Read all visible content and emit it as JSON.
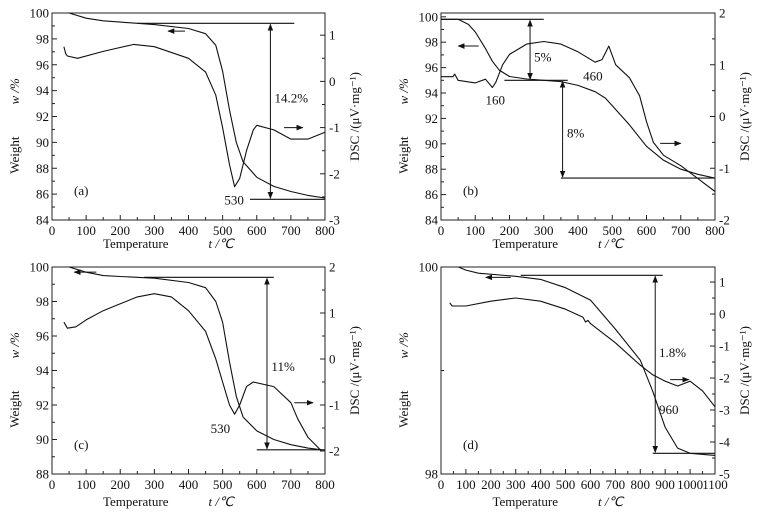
{
  "chart_data": [
    {
      "type": "line",
      "panel_label": "(a)",
      "xlabel": "Temperature",
      "xlabel_unit": "t /℃",
      "ylabel": "Weight",
      "ylabel_unit": "w /%",
      "y2label": "DSC /(μV·mg⁻¹)",
      "xlim": [
        0,
        800
      ],
      "ylim": [
        84,
        100
      ],
      "y2lim": [
        -3,
        1.48
      ],
      "xticks": [
        0,
        100,
        200,
        300,
        400,
        500,
        600,
        700,
        800
      ],
      "yticks": [
        84,
        86,
        88,
        90,
        92,
        94,
        96,
        98,
        100
      ],
      "y2ticks": [
        -3,
        -2,
        -1,
        0,
        1
      ],
      "grid": false,
      "series": [
        {
          "axis": "left",
          "x": [
            50,
            100,
            150,
            200,
            300,
            400,
            450,
            480,
            500,
            520,
            540,
            560,
            600,
            650,
            700,
            750,
            800
          ],
          "y": [
            100,
            99.6,
            99.4,
            99.3,
            99.1,
            98.8,
            98.4,
            97.5,
            95.5,
            92.5,
            90,
            88.5,
            87.3,
            86.6,
            86.2,
            85.9,
            85.7
          ]
        },
        {
          "axis": "right",
          "x": [
            35,
            40,
            45,
            75,
            150,
            240,
            300,
            400,
            450,
            480,
            500,
            520,
            535,
            550,
            570,
            590,
            600,
            650,
            700,
            750,
            800
          ],
          "y": [
            0.75,
            0.6,
            0.55,
            0.5,
            0.65,
            0.8,
            0.75,
            0.5,
            0.2,
            -0.3,
            -1,
            -1.8,
            -2.28,
            -2.1,
            -1.5,
            -1.05,
            -0.95,
            -1.05,
            -1.25,
            -1.25,
            -1.1
          ]
        }
      ],
      "annotations": [
        {
          "text": "14.2%",
          "x": 652,
          "y": 93.4
        },
        {
          "text": "530",
          "x": 505,
          "y": 85.5
        }
      ],
      "guides": {
        "hlines": [
          [
            250,
            710,
            99.2
          ],
          [
            580,
            800,
            85.6
          ]
        ],
        "vspan": [
          640,
          99.2,
          85.6
        ],
        "left_arrow": [
          390,
          340,
          98.6
        ],
        "right_arrow": [
          680,
          735,
          -1.0
        ]
      }
    },
    {
      "type": "line",
      "panel_label": "(b)",
      "xlabel": "Temperature",
      "xlabel_unit": "t /℃",
      "ylabel": "Weight",
      "ylabel_unit": "w /%",
      "y2label": "DSC /(μV·mg⁻¹)",
      "xlim": [
        0,
        800
      ],
      "ylim": [
        84,
        100.3
      ],
      "y2lim": [
        -2,
        2
      ],
      "xticks": [
        0,
        100,
        200,
        300,
        400,
        500,
        600,
        700,
        800
      ],
      "yticks": [
        84,
        86,
        88,
        90,
        92,
        94,
        96,
        98,
        100
      ],
      "y2ticks": [
        -2,
        -1,
        0,
        1,
        2
      ],
      "grid": false,
      "series": [
        {
          "axis": "left",
          "x": [
            0,
            50,
            80,
            100,
            130,
            150,
            170,
            200,
            250,
            300,
            350,
            400,
            450,
            480,
            500,
            550,
            600,
            650,
            700,
            750,
            800
          ],
          "y": [
            99.8,
            99.8,
            99.4,
            98.8,
            97.5,
            96.5,
            95.8,
            95.3,
            95.1,
            95,
            94.9,
            94.6,
            94.1,
            93.6,
            93,
            91.5,
            89.8,
            88.7,
            88,
            87.6,
            87.3
          ]
        },
        {
          "axis": "right",
          "x": [
            0,
            35,
            40,
            50,
            100,
            130,
            150,
            160,
            180,
            200,
            250,
            300,
            350,
            400,
            450,
            470,
            490,
            510,
            550,
            580,
            600,
            620,
            650,
            700,
            750,
            800
          ],
          "y": [
            0.77,
            0.77,
            0.82,
            0.7,
            0.65,
            0.72,
            0.56,
            0.66,
            1.0,
            1.2,
            1.4,
            1.45,
            1.4,
            1.25,
            1.05,
            1.1,
            1.36,
            1.0,
            0.75,
            0.4,
            -0.1,
            -0.5,
            -0.75,
            -0.95,
            -1.2,
            -1.45
          ]
        }
      ],
      "annotations": [
        {
          "text": "5%",
          "x": 272,
          "y": 96.8
        },
        {
          "text": "8%",
          "x": 368,
          "y": 90.8
        },
        {
          "text": "160",
          "x": 130,
          "y": 93.4
        },
        {
          "text": "460",
          "x": 415,
          "y": 95.3
        }
      ],
      "guides": {
        "hlines": [
          [
            0,
            300,
            99.8
          ],
          [
            185,
            370,
            95
          ],
          [
            350,
            800,
            87.3
          ]
        ],
        "vspan": [
          [
            260,
            99.8,
            95
          ],
          [
            355,
            95,
            87.3
          ]
        ],
        "left_arrow": [
          110,
          50,
          97.7
        ],
        "right_arrow": [
          640,
          700,
          -0.52
        ]
      }
    },
    {
      "type": "line",
      "panel_label": "(c)",
      "xlabel": "Temperature",
      "xlabel_unit": "t /℃",
      "ylabel": "Weight",
      "ylabel_unit": "w /%",
      "y2label": "DSC /(μV·mg⁻¹)",
      "xlim": [
        0,
        800
      ],
      "ylim": [
        88,
        100
      ],
      "y2lim": [
        -2.5,
        2
      ],
      "xticks": [
        0,
        100,
        200,
        300,
        400,
        500,
        600,
        700,
        800
      ],
      "yticks": [
        88,
        90,
        92,
        94,
        96,
        98,
        100
      ],
      "y2ticks": [
        -2,
        -1,
        0,
        1,
        2
      ],
      "grid": false,
      "series": [
        {
          "axis": "left",
          "x": [
            50,
            100,
            150,
            200,
            300,
            400,
            450,
            480,
            500,
            520,
            540,
            560,
            600,
            650,
            700,
            750,
            790
          ],
          "y": [
            100,
            99.7,
            99.5,
            99.45,
            99.35,
            99.1,
            98.8,
            98,
            96.8,
            94.5,
            92.5,
            91.3,
            90.5,
            90,
            89.7,
            89.5,
            89.4
          ]
        },
        {
          "axis": "right",
          "x": [
            35,
            45,
            70,
            100,
            150,
            200,
            250,
            300,
            350,
            400,
            450,
            480,
            500,
            520,
            535,
            550,
            570,
            590,
            650,
            700,
            720,
            750,
            790
          ],
          "y": [
            0.8,
            0.67,
            0.7,
            0.85,
            1.05,
            1.2,
            1.35,
            1.42,
            1.35,
            1.05,
            0.6,
            0,
            -0.5,
            -1,
            -1.2,
            -1,
            -0.6,
            -0.5,
            -0.6,
            -0.95,
            -1.3,
            -1.7,
            -2.0
          ]
        }
      ],
      "annotations": [
        {
          "text": "11%",
          "x": 643,
          "y": 94.2
        },
        {
          "text": "530",
          "x": 465,
          "y": 90.6
        }
      ],
      "guides": {
        "hlines": [
          [
            270,
            650,
            99.4
          ],
          [
            600,
            800,
            89.4
          ]
        ],
        "vspan": [
          630,
          99.4,
          89.4
        ],
        "left_arrow": [
          130,
          65,
          99.7
        ],
        "right_arrow": [
          710,
          765,
          -0.95
        ]
      }
    },
    {
      "type": "line",
      "panel_label": "(d)",
      "xlabel": "Temperature",
      "xlabel_unit": "t /℃",
      "ylabel": "Weight",
      "ylabel_unit": "w /%",
      "y2label": "DSC /(μV·mg⁻¹)",
      "xlim": [
        0,
        1100
      ],
      "ylim": [
        98,
        100
      ],
      "y2lim": [
        -5,
        1.47
      ],
      "xticks": [
        0,
        100,
        200,
        300,
        400,
        500,
        600,
        700,
        800,
        900,
        1000,
        1100
      ],
      "yticks": [
        98,
        100
      ],
      "y2ticks": [
        -5,
        -4,
        -3,
        -2,
        -1,
        0,
        1
      ],
      "grid": false,
      "series": [
        {
          "axis": "left",
          "x": [
            70,
            100,
            150,
            300,
            400,
            500,
            600,
            700,
            800,
            850,
            900,
            950,
            1000,
            1100
          ],
          "y": [
            100,
            99.97,
            99.94,
            99.91,
            99.88,
            99.8,
            99.68,
            99.4,
            99.1,
            98.8,
            98.45,
            98.25,
            98.2,
            98.18
          ]
        },
        {
          "axis": "right",
          "x": [
            35,
            45,
            100,
            200,
            300,
            400,
            500,
            570,
            580,
            590,
            600,
            700,
            800,
            850,
            900,
            950,
            1000,
            1050,
            1100
          ],
          "y": [
            0.35,
            0.25,
            0.25,
            0.4,
            0.5,
            0.4,
            0.15,
            -0.1,
            -0.25,
            -0.2,
            -0.3,
            -0.9,
            -1.6,
            -1.9,
            -2.1,
            -2.25,
            -2.1,
            -2.4,
            -2.9
          ]
        }
      ],
      "annotations": [
        {
          "text": "1.8%",
          "x": 875,
          "y": 99.17
        },
        {
          "text": "960",
          "x": 875,
          "y": 98.62
        }
      ],
      "guides": {
        "hlines": [
          [
            320,
            890,
            99.92
          ],
          [
            850,
            1100,
            98.2
          ]
        ],
        "vspan": [
          860,
          99.92,
          98.2
        ],
        "left_arrow": [
          280,
          180,
          99.9
        ],
        "right_arrow": [
          920,
          995,
          -2.05
        ]
      }
    }
  ]
}
